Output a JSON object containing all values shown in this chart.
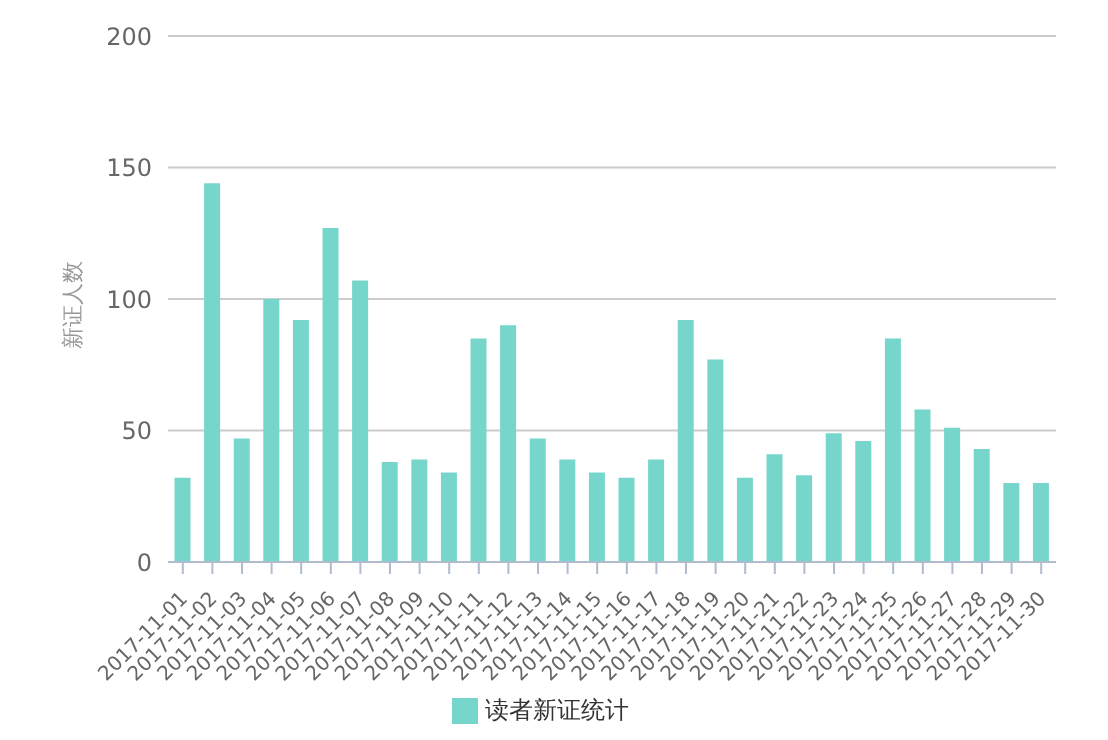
{
  "chart_data": {
    "type": "bar",
    "ylabel": "新证人数",
    "categories": [
      "2017-11-01",
      "2017-11-02",
      "2017-11-03",
      "2017-11-04",
      "2017-11-05",
      "2017-11-06",
      "2017-11-07",
      "2017-11-08",
      "2017-11-09",
      "2017-11-10",
      "2017-11-11",
      "2017-11-12",
      "2017-11-13",
      "2017-11-14",
      "2017-11-15",
      "2017-11-16",
      "2017-11-17",
      "2017-11-18",
      "2017-11-19",
      "2017-11-20",
      "2017-11-21",
      "2017-11-22",
      "2017-11-23",
      "2017-11-24",
      "2017-11-25",
      "2017-11-26",
      "2017-11-27",
      "2017-11-28",
      "2017-11-29",
      "2017-11-30"
    ],
    "series": [
      {
        "name": "读者新证统计",
        "color": "#76d6cb",
        "values": [
          32,
          144,
          47,
          100,
          92,
          127,
          107,
          38,
          39,
          34,
          85,
          90,
          47,
          39,
          34,
          32,
          39,
          92,
          77,
          32,
          41,
          33,
          49,
          46,
          85,
          58,
          51,
          43,
          30,
          30
        ]
      }
    ],
    "ylim": [
      0,
      200
    ],
    "yticks": [
      0,
      50,
      100,
      150,
      200
    ],
    "grid": "y",
    "legend": "bottom"
  }
}
